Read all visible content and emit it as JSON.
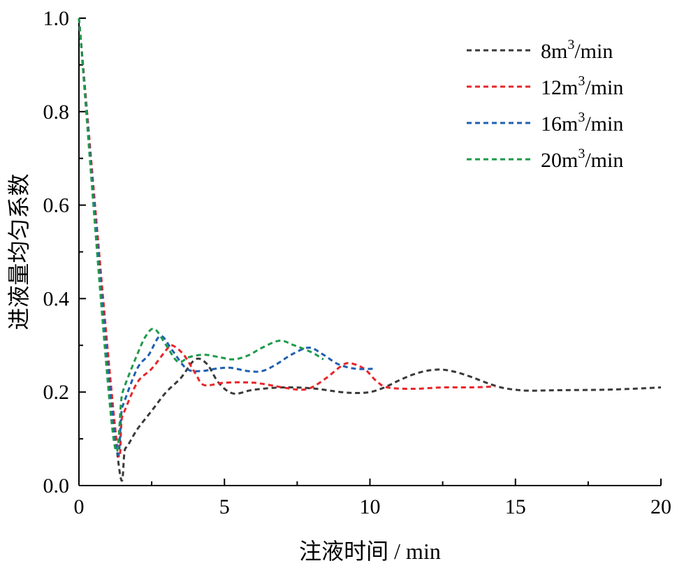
{
  "chart_data": {
    "type": "line",
    "title": "",
    "xlabel": "注液时间 / min",
    "ylabel": "进液量均匀系数",
    "xlim": [
      0,
      20
    ],
    "ylim": [
      0.0,
      1.0
    ],
    "xticks": [
      0,
      5,
      10,
      15,
      20
    ],
    "xtick_labels": [
      "0",
      "5",
      "10",
      "15",
      "20"
    ],
    "yticks": [
      0.0,
      0.2,
      0.4,
      0.6,
      0.8,
      1.0
    ],
    "ytick_labels": [
      "0.0",
      "0.2",
      "0.4",
      "0.6",
      "0.8",
      "1.0"
    ],
    "grid": false,
    "legend_position": "top-right",
    "line_style": "dashed",
    "series": [
      {
        "name": "8m3/min",
        "label_main": "8m",
        "label_sup": "3",
        "label_tail": "/min",
        "color": "#3a3a3a",
        "points": [
          [
            0,
            1.0
          ],
          [
            1.3,
            0.08
          ],
          [
            1.6,
            0.08
          ],
          [
            2.0,
            0.12
          ],
          [
            2.5,
            0.16
          ],
          [
            3.0,
            0.2
          ],
          [
            3.5,
            0.23
          ],
          [
            4.0,
            0.27
          ],
          [
            4.4,
            0.26
          ],
          [
            4.8,
            0.22
          ],
          [
            5.3,
            0.197
          ],
          [
            6.0,
            0.205
          ],
          [
            7.0,
            0.21
          ],
          [
            8.0,
            0.208
          ],
          [
            9.0,
            0.2
          ],
          [
            9.5,
            0.198
          ],
          [
            10.0,
            0.2
          ],
          [
            10.5,
            0.21
          ],
          [
            11.0,
            0.225
          ],
          [
            11.5,
            0.238
          ],
          [
            12.0,
            0.246
          ],
          [
            12.5,
            0.248
          ],
          [
            13.0,
            0.242
          ],
          [
            13.5,
            0.232
          ],
          [
            14.0,
            0.22
          ],
          [
            14.5,
            0.21
          ],
          [
            15.0,
            0.205
          ],
          [
            15.5,
            0.203
          ],
          [
            16.5,
            0.204
          ],
          [
            18.0,
            0.205
          ],
          [
            19.0,
            0.207
          ],
          [
            20.0,
            0.21
          ]
        ]
      },
      {
        "name": "12m3/min",
        "label_main": "12m",
        "label_sup": "3",
        "label_tail": "/min",
        "color": "#e8262a",
        "points": [
          [
            0,
            1.0
          ],
          [
            1.25,
            0.12
          ],
          [
            1.5,
            0.15
          ],
          [
            2.0,
            0.22
          ],
          [
            2.5,
            0.25
          ],
          [
            3.0,
            0.29
          ],
          [
            3.2,
            0.3
          ],
          [
            3.6,
            0.28
          ],
          [
            4.0,
            0.24
          ],
          [
            4.3,
            0.215
          ],
          [
            5.0,
            0.22
          ],
          [
            6.0,
            0.22
          ],
          [
            7.0,
            0.21
          ],
          [
            7.6,
            0.205
          ],
          [
            8.0,
            0.21
          ],
          [
            8.5,
            0.23
          ],
          [
            9.0,
            0.255
          ],
          [
            9.3,
            0.262
          ],
          [
            9.8,
            0.25
          ],
          [
            10.2,
            0.225
          ],
          [
            10.6,
            0.21
          ],
          [
            11.5,
            0.207
          ],
          [
            12.5,
            0.21
          ],
          [
            13.5,
            0.21
          ],
          [
            14.3,
            0.212
          ]
        ]
      },
      {
        "name": "16m3/min",
        "label_main": "16m",
        "label_sup": "3",
        "label_tail": "/min",
        "color": "#1f5fb0",
        "points": [
          [
            0,
            1.0
          ],
          [
            1.2,
            0.12
          ],
          [
            1.5,
            0.17
          ],
          [
            2.0,
            0.25
          ],
          [
            2.4,
            0.28
          ],
          [
            2.8,
            0.32
          ],
          [
            3.2,
            0.29
          ],
          [
            3.7,
            0.25
          ],
          [
            4.2,
            0.245
          ],
          [
            4.7,
            0.25
          ],
          [
            5.2,
            0.252
          ],
          [
            5.8,
            0.245
          ],
          [
            6.3,
            0.245
          ],
          [
            6.8,
            0.26
          ],
          [
            7.3,
            0.28
          ],
          [
            7.9,
            0.295
          ],
          [
            8.4,
            0.28
          ],
          [
            8.9,
            0.26
          ],
          [
            9.5,
            0.25
          ],
          [
            10.2,
            0.25
          ]
        ]
      },
      {
        "name": "20m3/min",
        "label_main": "20m",
        "label_sup": "3",
        "label_tail": "/min",
        "color": "#1e9a4a",
        "points": [
          [
            0,
            1.0
          ],
          [
            1.15,
            0.12
          ],
          [
            1.5,
            0.2
          ],
          [
            2.0,
            0.28
          ],
          [
            2.3,
            0.32
          ],
          [
            2.6,
            0.335
          ],
          [
            3.0,
            0.3
          ],
          [
            3.4,
            0.265
          ],
          [
            3.8,
            0.275
          ],
          [
            4.3,
            0.28
          ],
          [
            4.8,
            0.275
          ],
          [
            5.3,
            0.27
          ],
          [
            5.8,
            0.278
          ],
          [
            6.3,
            0.295
          ],
          [
            6.9,
            0.31
          ],
          [
            7.4,
            0.3
          ],
          [
            8.0,
            0.285
          ],
          [
            8.4,
            0.27
          ]
        ]
      }
    ]
  }
}
